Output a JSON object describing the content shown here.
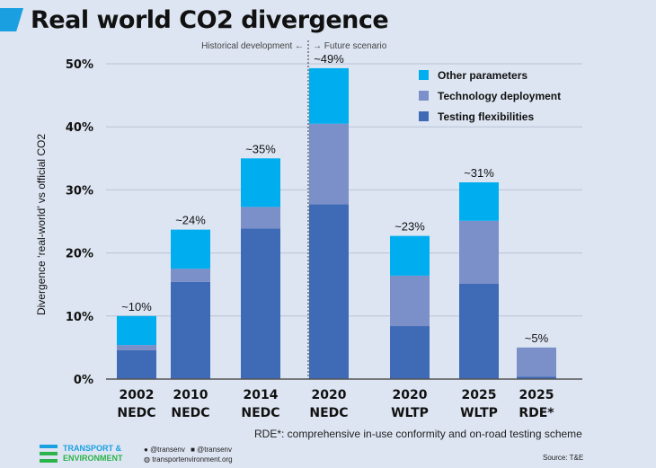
{
  "chart_data": {
    "type": "bar",
    "stacked": true,
    "title": "Real world CO2 divergence",
    "ylabel": "Divergence ‘real-world’ vs official CO2",
    "ylim": [
      0,
      50
    ],
    "yticks": [
      "0%",
      "10%",
      "20%",
      "30%",
      "40%",
      "50%"
    ],
    "grid": true,
    "legend_position": "top-right",
    "categories": [
      [
        "2002",
        "NEDC"
      ],
      [
        "2010",
        "NEDC"
      ],
      [
        "2014",
        "NEDC"
      ],
      [
        "2020",
        "NEDC"
      ],
      [
        "2020",
        "WLTP"
      ],
      [
        "2025",
        "WLTP"
      ],
      [
        "2025",
        "RDE*"
      ]
    ],
    "totals_labels": [
      "~10%",
      "~24%",
      "~35%",
      "~49%",
      "~23%",
      "~31%",
      "~5%"
    ],
    "series": [
      {
        "name": "Testing flexibilities",
        "color": "#3f6ab5",
        "values": [
          4.6,
          15.4,
          23.9,
          27.7,
          8.4,
          15.1,
          0.4
        ]
      },
      {
        "name": "Technology deployment",
        "color": "#7b8fc9",
        "values": [
          0.8,
          2.1,
          3.4,
          12.8,
          8.0,
          10.0,
          4.6
        ]
      },
      {
        "name": "Other parameters",
        "color": "#00aeef",
        "values": [
          4.6,
          6.2,
          7.7,
          8.8,
          6.3,
          6.1,
          0
        ]
      }
    ],
    "annotations": {
      "historical": "Historical development ←",
      "future": "→ Future scenario",
      "footnote": "RDE*: comprehensive in-use conformity and on-road testing scheme",
      "source": "Source: T&E"
    }
  },
  "branding": {
    "logo_line1": "TRANSPORT &",
    "logo_line2": "ENVIRONMENT",
    "twitter": "@transenv",
    "facebook": "@transenv",
    "website": "transportenvironment.org"
  }
}
